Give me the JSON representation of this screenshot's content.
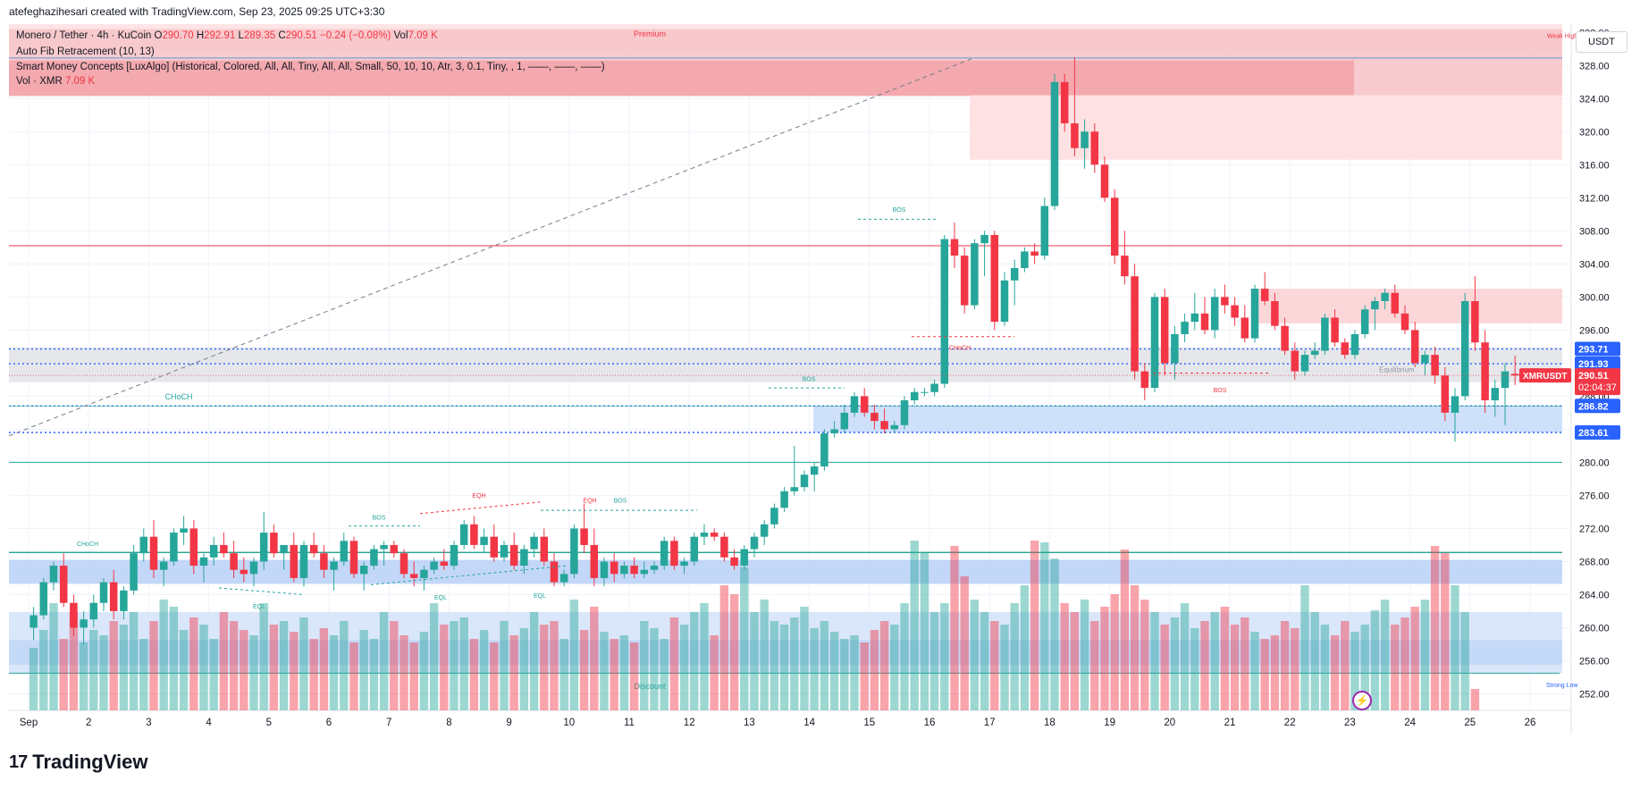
{
  "top_bar": {
    "text": "atefeghazihesari created with TradingView.com, Sep 23, 2025 09:25 UTC+3:30"
  },
  "legend": {
    "symbol": "Monero / Tether · 4h · KuCoin",
    "o_label": "O",
    "o_value": "290.70",
    "h_label": "H",
    "h_value": "292.91",
    "l_label": "L",
    "l_value": "289.35",
    "c_label": "C",
    "c_value": "290.51",
    "change": "−0.24 (−0.08%)",
    "vol_label": "Vol",
    "vol_value": "7.09 K",
    "indicator_fib": "Auto Fib Retracement (10, 13)",
    "indicator_smc": "Smart Money Concepts [LuxAlgo] (Historical, Colored, All, All, Tiny, All, All, Small, 50, 10, 10, Atr, 3, 0.1, Tiny, , 1, ——, ——, ——)",
    "vol_indicator": "Vol · XMR",
    "vol_indicator_value": "7.09 K"
  },
  "currency_button": "USDT",
  "brand": {
    "name": "TradingView",
    "logo": "17"
  },
  "colors": {
    "up": "#26a69a",
    "down": "#f23645",
    "blue_label": "#2962ff",
    "price_label": "#f23645"
  },
  "annotations": {
    "premium": "Premium",
    "discount": "Discount",
    "weak_high": "Weak High",
    "strong_low": "Strong Low",
    "equilibrium": "Equilibrium",
    "choch_left": "CHoCH",
    "choch_sep1": "CHoCH",
    "choch_mid": "CHoCH",
    "bos_1": "BOS",
    "bos_2": "BOS",
    "bos_3": "BOS",
    "bos_4": "BOS",
    "bos_5": "BOS",
    "eqh_1": "EQH",
    "eqh_2": "EQH",
    "eql_1": "EQL",
    "eql_2": "EQL",
    "eql_3": "EQL"
  },
  "price_labels": {
    "l1": "293.71",
    "l2": "291.93",
    "symbol": "XMRUSDT",
    "last": "290.51",
    "countdown": "02:04:37",
    "l3": "286.82",
    "l4": "283.61"
  },
  "chart_data": {
    "type": "candlestick",
    "title": "Monero / Tether · 4h · KuCoin",
    "timeframe": "4h",
    "ylim": [
      250,
      333
    ],
    "y_ticks": [
      252,
      256,
      260,
      264,
      268,
      272,
      276,
      280,
      284,
      288,
      292,
      296,
      300,
      304,
      308,
      312,
      316,
      320,
      324,
      328,
      332
    ],
    "x_ticks": [
      "Sep",
      "2",
      "3",
      "4",
      "5",
      "6",
      "7",
      "8",
      "9",
      "10",
      "11",
      "12",
      "13",
      "14",
      "15",
      "16",
      "17",
      "18",
      "19",
      "20",
      "21",
      "22",
      "23",
      "24",
      "25",
      "26"
    ],
    "candles": [
      [
        260.0,
        262.5,
        258.5,
        261.5
      ],
      [
        261.5,
        266.0,
        261.0,
        265.5
      ],
      [
        265.5,
        268.0,
        264.5,
        267.5
      ],
      [
        267.5,
        269.0,
        262.5,
        263.0
      ],
      [
        263.0,
        264.0,
        259.0,
        260.0
      ],
      [
        260.0,
        262.0,
        258.0,
        261.0
      ],
      [
        261.0,
        264.0,
        260.0,
        263.0
      ],
      [
        263.0,
        266.0,
        262.0,
        265.5
      ],
      [
        265.5,
        267.0,
        261.0,
        262.0
      ],
      [
        262.0,
        265.0,
        261.0,
        264.5
      ],
      [
        264.5,
        270.0,
        264.0,
        269.0
      ],
      [
        269.0,
        272.0,
        268.0,
        271.0
      ],
      [
        271.0,
        273.0,
        266.0,
        267.0
      ],
      [
        267.0,
        268.5,
        265.0,
        268.0
      ],
      [
        268.0,
        272.0,
        267.5,
        271.5
      ],
      [
        271.5,
        273.5,
        270.0,
        272.0
      ],
      [
        272.0,
        273.0,
        266.5,
        267.5
      ],
      [
        267.5,
        269.0,
        265.5,
        268.5
      ],
      [
        268.5,
        271.0,
        267.5,
        270.0
      ],
      [
        270.0,
        271.5,
        268.5,
        269.0
      ],
      [
        269.0,
        270.5,
        266.0,
        267.0
      ],
      [
        267.0,
        268.5,
        265.5,
        266.5
      ],
      [
        266.5,
        268.5,
        265.0,
        268.0
      ],
      [
        268.0,
        274.0,
        267.0,
        271.5
      ],
      [
        271.5,
        272.5,
        268.5,
        269.0
      ],
      [
        269.0,
        270.0,
        267.0,
        270.0
      ],
      [
        270.0,
        271.5,
        265.5,
        266.0
      ],
      [
        266.0,
        270.5,
        265.0,
        270.0
      ],
      [
        270.0,
        271.5,
        268.5,
        269.0
      ],
      [
        269.0,
        270.0,
        266.0,
        267.0
      ],
      [
        267.0,
        268.5,
        264.5,
        268.0
      ],
      [
        268.0,
        271.5,
        267.5,
        270.5
      ],
      [
        270.5,
        271.0,
        266.0,
        266.5
      ],
      [
        266.5,
        268.0,
        264.5,
        267.5
      ],
      [
        267.5,
        270.0,
        267.0,
        269.5
      ],
      [
        269.5,
        270.5,
        267.5,
        270.0
      ],
      [
        270.0,
        270.5,
        268.5,
        269.0
      ],
      [
        269.0,
        269.5,
        266.0,
        266.5
      ],
      [
        266.5,
        268.0,
        265.0,
        266.0
      ],
      [
        266.0,
        267.5,
        264.5,
        267.0
      ],
      [
        267.0,
        268.5,
        266.5,
        268.0
      ],
      [
        268.0,
        269.5,
        267.0,
        267.5
      ],
      [
        267.5,
        270.5,
        267.0,
        270.0
      ],
      [
        270.0,
        273.0,
        269.5,
        272.5
      ],
      [
        272.5,
        273.5,
        269.5,
        270.0
      ],
      [
        270.0,
        272.0,
        269.0,
        271.0
      ],
      [
        271.0,
        272.5,
        268.0,
        268.5
      ],
      [
        268.5,
        270.5,
        268.0,
        270.0
      ],
      [
        270.0,
        271.5,
        267.0,
        267.5
      ],
      [
        267.5,
        270.0,
        266.5,
        269.5
      ],
      [
        269.5,
        271.5,
        268.5,
        271.0
      ],
      [
        271.0,
        272.0,
        267.5,
        268.0
      ],
      [
        268.0,
        269.0,
        265.0,
        265.5
      ],
      [
        265.5,
        267.0,
        265.0,
        266.5
      ],
      [
        266.5,
        272.5,
        266.0,
        272.0
      ],
      [
        272.0,
        275.0,
        269.0,
        270.0
      ],
      [
        270.0,
        272.0,
        265.0,
        266.0
      ],
      [
        266.0,
        268.5,
        265.0,
        268.0
      ],
      [
        268.0,
        269.0,
        265.5,
        266.5
      ],
      [
        266.5,
        268.0,
        266.0,
        267.5
      ],
      [
        267.5,
        268.5,
        266.0,
        266.5
      ],
      [
        266.5,
        268.0,
        266.0,
        267.0
      ],
      [
        267.0,
        268.0,
        266.5,
        267.5
      ],
      [
        267.5,
        271.0,
        267.0,
        270.5
      ],
      [
        270.5,
        271.0,
        267.0,
        267.5
      ],
      [
        267.5,
        268.5,
        266.5,
        268.0
      ],
      [
        268.0,
        271.5,
        267.5,
        271.0
      ],
      [
        271.0,
        272.5,
        270.0,
        271.5
      ],
      [
        271.5,
        272.0,
        270.5,
        271.0
      ],
      [
        271.0,
        271.5,
        268.0,
        268.5
      ],
      [
        268.5,
        269.5,
        267.0,
        267.5
      ],
      [
        267.5,
        270.0,
        267.0,
        269.5
      ],
      [
        269.5,
        271.5,
        268.5,
        271.0
      ],
      [
        271.0,
        273.0,
        270.0,
        272.5
      ],
      [
        272.5,
        275.0,
        272.0,
        274.5
      ],
      [
        274.5,
        277.0,
        274.0,
        276.5
      ],
      [
        276.5,
        282.0,
        276.0,
        277.0
      ],
      [
        277.0,
        279.0,
        276.5,
        278.5
      ],
      [
        278.5,
        280.0,
        276.5,
        279.5
      ],
      [
        279.5,
        284.0,
        279.0,
        283.5
      ],
      [
        283.5,
        285.0,
        283.0,
        284.0
      ],
      [
        284.0,
        287.0,
        283.5,
        286.0
      ],
      [
        286.0,
        288.5,
        285.5,
        288.0
      ],
      [
        288.0,
        289.0,
        285.5,
        286.0
      ],
      [
        286.0,
        287.0,
        284.0,
        285.0
      ],
      [
        285.0,
        286.5,
        283.5,
        284.0
      ],
      [
        284.0,
        285.0,
        283.5,
        284.5
      ],
      [
        284.5,
        288.0,
        284.0,
        287.5
      ],
      [
        287.5,
        289.0,
        287.0,
        288.5
      ],
      [
        288.5,
        289.0,
        288.0,
        288.5
      ],
      [
        288.5,
        290.0,
        288.0,
        289.5
      ],
      [
        289.5,
        307.5,
        289.0,
        307.0
      ],
      [
        307.0,
        309.0,
        303.5,
        305.0
      ],
      [
        305.0,
        306.0,
        298.0,
        299.0
      ],
      [
        299.0,
        307.0,
        298.5,
        306.5
      ],
      [
        306.5,
        308.0,
        302.5,
        307.5
      ],
      [
        307.5,
        308.0,
        296.0,
        297.0
      ],
      [
        297.0,
        303.0,
        296.5,
        302.0
      ],
      [
        302.0,
        304.5,
        299.0,
        303.5
      ],
      [
        303.5,
        306.0,
        303.0,
        305.5
      ],
      [
        305.5,
        306.5,
        304.0,
        305.0
      ],
      [
        305.0,
        312.0,
        304.5,
        311.0
      ],
      [
        311.0,
        327.0,
        310.5,
        326.0
      ],
      [
        326.0,
        327.0,
        320.0,
        321.0
      ],
      [
        321.0,
        329.0,
        317.0,
        318.0
      ],
      [
        318.0,
        321.5,
        315.5,
        320.0
      ],
      [
        320.0,
        321.0,
        315.0,
        316.0
      ],
      [
        316.0,
        317.0,
        311.5,
        312.0
      ],
      [
        312.0,
        313.0,
        304.0,
        305.0
      ],
      [
        305.0,
        308.0,
        301.5,
        302.5
      ],
      [
        302.5,
        304.0,
        290.0,
        291.0
      ],
      [
        291.0,
        292.0,
        287.5,
        289.0
      ],
      [
        289.0,
        300.5,
        288.5,
        300.0
      ],
      [
        300.0,
        301.0,
        290.5,
        292.0
      ],
      [
        292.0,
        296.5,
        290.0,
        295.5
      ],
      [
        295.5,
        298.0,
        294.5,
        297.0
      ],
      [
        297.0,
        300.5,
        296.0,
        298.0
      ],
      [
        298.0,
        300.0,
        295.5,
        296.0
      ],
      [
        296.0,
        301.0,
        295.0,
        300.0
      ],
      [
        300.0,
        301.5,
        298.0,
        299.0
      ],
      [
        299.0,
        300.0,
        296.5,
        297.5
      ],
      [
        297.5,
        299.0,
        294.5,
        295.0
      ],
      [
        295.0,
        301.5,
        294.5,
        301.0
      ],
      [
        301.0,
        303.0,
        299.0,
        299.5
      ],
      [
        299.5,
        300.5,
        296.0,
        296.5
      ],
      [
        296.5,
        297.5,
        293.0,
        293.5
      ],
      [
        293.5,
        294.5,
        290.0,
        291.0
      ],
      [
        291.0,
        293.5,
        290.5,
        293.0
      ],
      [
        293.0,
        294.5,
        292.5,
        293.5
      ],
      [
        293.5,
        298.0,
        293.0,
        297.5
      ],
      [
        297.5,
        298.5,
        294.0,
        294.5
      ],
      [
        294.5,
        295.0,
        292.5,
        293.0
      ],
      [
        293.0,
        296.0,
        292.5,
        295.5
      ],
      [
        295.5,
        299.0,
        295.0,
        298.5
      ],
      [
        298.5,
        300.0,
        296.0,
        299.5
      ],
      [
        299.5,
        301.0,
        298.5,
        300.5
      ],
      [
        300.5,
        301.5,
        297.5,
        298.0
      ],
      [
        298.0,
        299.0,
        295.5,
        296.0
      ],
      [
        296.0,
        297.0,
        291.5,
        292.0
      ],
      [
        292.0,
        293.5,
        290.5,
        293.0
      ],
      [
        293.0,
        294.0,
        289.5,
        290.5
      ],
      [
        290.5,
        291.5,
        285.0,
        286.0
      ],
      [
        286.0,
        289.0,
        282.5,
        288.0
      ],
      [
        288.0,
        300.5,
        287.5,
        299.5
      ],
      [
        299.5,
        302.5,
        293.5,
        294.5
      ],
      [
        294.5,
        296.0,
        286.0,
        287.5
      ],
      [
        287.5,
        290.0,
        285.5,
        289.0
      ],
      [
        289.0,
        292.0,
        284.5,
        291.0
      ],
      [
        290.7,
        292.91,
        289.35,
        290.51
      ]
    ],
    "volume_note": "Volume histogram below price (relative heights)",
    "volumes": [
      0.35,
      0.45,
      0.6,
      0.4,
      0.55,
      0.38,
      0.45,
      0.42,
      0.5,
      0.48,
      0.55,
      0.4,
      0.5,
      0.62,
      0.58,
      0.45,
      0.52,
      0.48,
      0.4,
      0.55,
      0.5,
      0.45,
      0.42,
      0.6,
      0.48,
      0.5,
      0.44,
      0.52,
      0.4,
      0.46,
      0.42,
      0.5,
      0.38,
      0.45,
      0.4,
      0.55,
      0.5,
      0.42,
      0.38,
      0.44,
      0.6,
      0.48,
      0.5,
      0.52,
      0.4,
      0.45,
      0.38,
      0.5,
      0.42,
      0.46,
      0.55,
      0.48,
      0.5,
      0.4,
      0.62,
      0.45,
      0.58,
      0.44,
      0.4,
      0.42,
      0.38,
      0.5,
      0.46,
      0.4,
      0.52,
      0.48,
      0.55,
      0.6,
      0.42,
      0.7,
      0.65,
      0.8,
      0.55,
      0.62,
      0.5,
      0.48,
      0.52,
      0.58,
      0.46,
      0.5,
      0.44,
      0.4,
      0.42,
      0.38,
      0.45,
      0.5,
      0.48,
      0.6,
      0.95,
      0.88,
      0.55,
      0.6,
      0.92,
      0.75,
      0.62,
      0.55,
      0.5,
      0.48,
      0.6,
      0.7,
      0.95,
      0.94,
      0.85,
      0.6,
      0.55,
      0.62,
      0.5,
      0.58,
      0.65,
      0.9,
      0.7,
      0.62,
      0.55,
      0.48,
      0.52,
      0.6,
      0.46,
      0.5,
      0.55,
      0.58,
      0.48,
      0.52,
      0.44,
      0.4,
      0.42,
      0.5,
      0.46,
      0.7,
      0.55,
      0.48,
      0.42,
      0.5,
      0.44,
      0.48,
      0.56,
      0.62,
      0.48,
      0.52,
      0.58,
      0.62,
      0.92,
      0.88,
      0.7,
      0.55,
      0.12
    ]
  }
}
